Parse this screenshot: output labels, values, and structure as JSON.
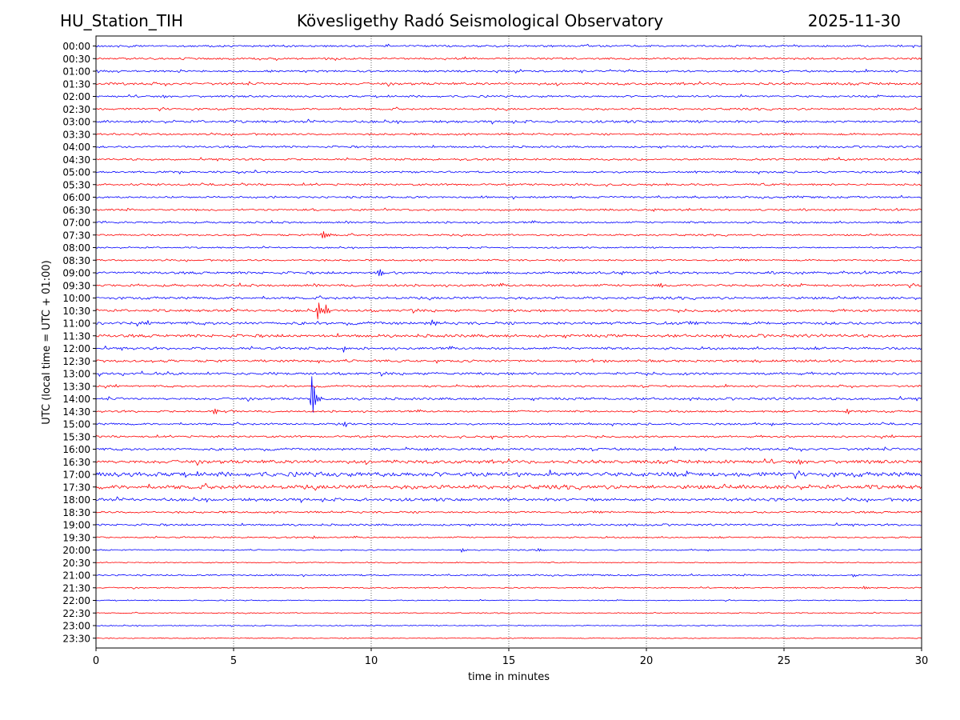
{
  "header": {
    "station": "HU_Station_TIH",
    "observatory": "Kövesligethy Radó Seismological Observatory",
    "date": "2025-11-30"
  },
  "chart_data": {
    "type": "line",
    "title": "Kövesligethy Radó Seismological Observatory",
    "xlabel": "time in minutes",
    "ylabel": "UTC (local time = UTC + 01:00)",
    "xlim": [
      0,
      30
    ],
    "xticks": [
      0,
      5,
      10,
      15,
      20,
      25,
      30
    ],
    "grid": "vertical dotted at x ticks",
    "colors": {
      "even": "#0000ff",
      "odd": "#ff0000"
    },
    "rows": [
      {
        "label": "00:00",
        "noise": 2,
        "events": []
      },
      {
        "label": "00:30",
        "noise": 2,
        "events": []
      },
      {
        "label": "01:00",
        "noise": 2,
        "events": []
      },
      {
        "label": "01:30",
        "noise": 2.5,
        "events": []
      },
      {
        "label": "02:00",
        "noise": 2,
        "events": []
      },
      {
        "label": "02:30",
        "noise": 2,
        "events": []
      },
      {
        "label": "03:00",
        "noise": 2.5,
        "events": []
      },
      {
        "label": "03:30",
        "noise": 2,
        "events": []
      },
      {
        "label": "04:00",
        "noise": 2,
        "events": []
      },
      {
        "label": "04:30",
        "noise": 2,
        "events": []
      },
      {
        "label": "05:00",
        "noise": 2,
        "events": []
      },
      {
        "label": "05:30",
        "noise": 2,
        "events": []
      },
      {
        "label": "06:00",
        "noise": 2,
        "events": []
      },
      {
        "label": "06:30",
        "noise": 2,
        "events": []
      },
      {
        "label": "07:00",
        "noise": 2,
        "events": []
      },
      {
        "label": "07:30",
        "noise": 1.8,
        "events": [
          {
            "t": 8.25,
            "amp": 9
          }
        ]
      },
      {
        "label": "08:00",
        "noise": 1.5,
        "events": []
      },
      {
        "label": "08:30",
        "noise": 1.8,
        "events": []
      },
      {
        "label": "09:00",
        "noise": 2.5,
        "events": [
          {
            "t": 10.3,
            "amp": 9
          }
        ]
      },
      {
        "label": "09:30",
        "noise": 2.5,
        "events": [
          {
            "t": 20.5,
            "amp": 3
          }
        ]
      },
      {
        "label": "10:00",
        "noise": 2.5,
        "events": []
      },
      {
        "label": "10:30",
        "noise": 2.5,
        "events": [
          {
            "t": 8.05,
            "amp": 13
          },
          {
            "t": 8.35,
            "amp": 6
          }
        ]
      },
      {
        "label": "11:00",
        "noise": 3,
        "events": [
          {
            "t": 12.2,
            "amp": 4
          }
        ]
      },
      {
        "label": "11:30",
        "noise": 3,
        "events": []
      },
      {
        "label": "12:00",
        "noise": 2.5,
        "events": [
          {
            "t": 9.0,
            "amp": 4
          }
        ]
      },
      {
        "label": "12:30",
        "noise": 2.5,
        "events": []
      },
      {
        "label": "13:00",
        "noise": 2.5,
        "events": []
      },
      {
        "label": "13:30",
        "noise": 2,
        "events": []
      },
      {
        "label": "14:00",
        "noise": 2.5,
        "events": [
          {
            "t": 7.85,
            "amp": 30
          }
        ]
      },
      {
        "label": "14:30",
        "noise": 2,
        "events": [
          {
            "t": 4.3,
            "amp": 4
          },
          {
            "t": 27.3,
            "amp": 4
          }
        ]
      },
      {
        "label": "15:00",
        "noise": 2,
        "events": [
          {
            "t": 9.0,
            "amp": 3
          }
        ]
      },
      {
        "label": "15:30",
        "noise": 2,
        "events": [
          {
            "t": 14.4,
            "amp": 3
          }
        ]
      },
      {
        "label": "16:00",
        "noise": 2.5,
        "events": []
      },
      {
        "label": "16:30",
        "noise": 3.5,
        "events": []
      },
      {
        "label": "17:00",
        "noise": 4.5,
        "events": []
      },
      {
        "label": "17:30",
        "noise": 4,
        "events": []
      },
      {
        "label": "18:00",
        "noise": 3,
        "events": []
      },
      {
        "label": "18:30",
        "noise": 2,
        "events": []
      },
      {
        "label": "19:00",
        "noise": 2,
        "events": []
      },
      {
        "label": "19:30",
        "noise": 1.5,
        "events": [
          {
            "t": 7.9,
            "amp": 2.5
          }
        ]
      },
      {
        "label": "20:00",
        "noise": 1.2,
        "events": [
          {
            "t": 13.3,
            "amp": 3
          },
          {
            "t": 16.1,
            "amp": 2.5
          }
        ]
      },
      {
        "label": "20:30",
        "noise": 1,
        "events": []
      },
      {
        "label": "21:00",
        "noise": 1.5,
        "events": [
          {
            "t": 27.5,
            "amp": 3
          }
        ]
      },
      {
        "label": "21:30",
        "noise": 1.2,
        "events": [
          {
            "t": 27.9,
            "amp": 3
          }
        ]
      },
      {
        "label": "22:00",
        "noise": 1,
        "events": []
      },
      {
        "label": "22:30",
        "noise": 1,
        "events": []
      },
      {
        "label": "23:00",
        "noise": 1,
        "events": []
      },
      {
        "label": "23:30",
        "noise": 1,
        "events": []
      }
    ]
  }
}
